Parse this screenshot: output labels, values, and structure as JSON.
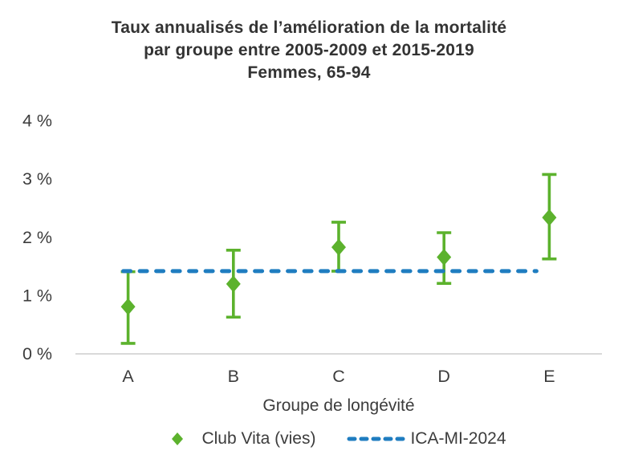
{
  "chart_data": {
    "type": "scatter",
    "title_lines": {
      "0": "Taux annualisés de l’amélioration de la mortalité",
      "1": "par groupe entre 2005-2009 et 2015-2019",
      "2": "Femmes, 65-94"
    },
    "categories": [
      "A",
      "B",
      "C",
      "D",
      "E"
    ],
    "xlabel": "Groupe de longévité",
    "ylabel": "",
    "ylim": [
      0,
      4
    ],
    "yticks": [
      0,
      1,
      2,
      3,
      4
    ],
    "ytick_labels": [
      "0 %",
      "1 %",
      "2 %",
      "3 %",
      "4 %"
    ],
    "grid": false,
    "legend_position": "bottom",
    "series": [
      {
        "name": "Club Vita (vies)",
        "type": "scatter-with-error-bars",
        "marker": "diamond",
        "color": "#5CB22D",
        "values": [
          0.81,
          1.2,
          1.83,
          1.66,
          2.34
        ],
        "lower": [
          0.18,
          0.63,
          1.42,
          1.21,
          1.63
        ],
        "upper": [
          1.41,
          1.78,
          2.26,
          2.08,
          3.08
        ]
      },
      {
        "name": "ICA-MI-2024",
        "type": "horizontal-dashed-line",
        "color": "#1F7DC0",
        "value": 1.42,
        "span": "from group A to just before group E"
      }
    ],
    "colors": {
      "axis_line": "#D9D9D9",
      "text": "#3C3C3C",
      "title_text": "#333333"
    }
  }
}
